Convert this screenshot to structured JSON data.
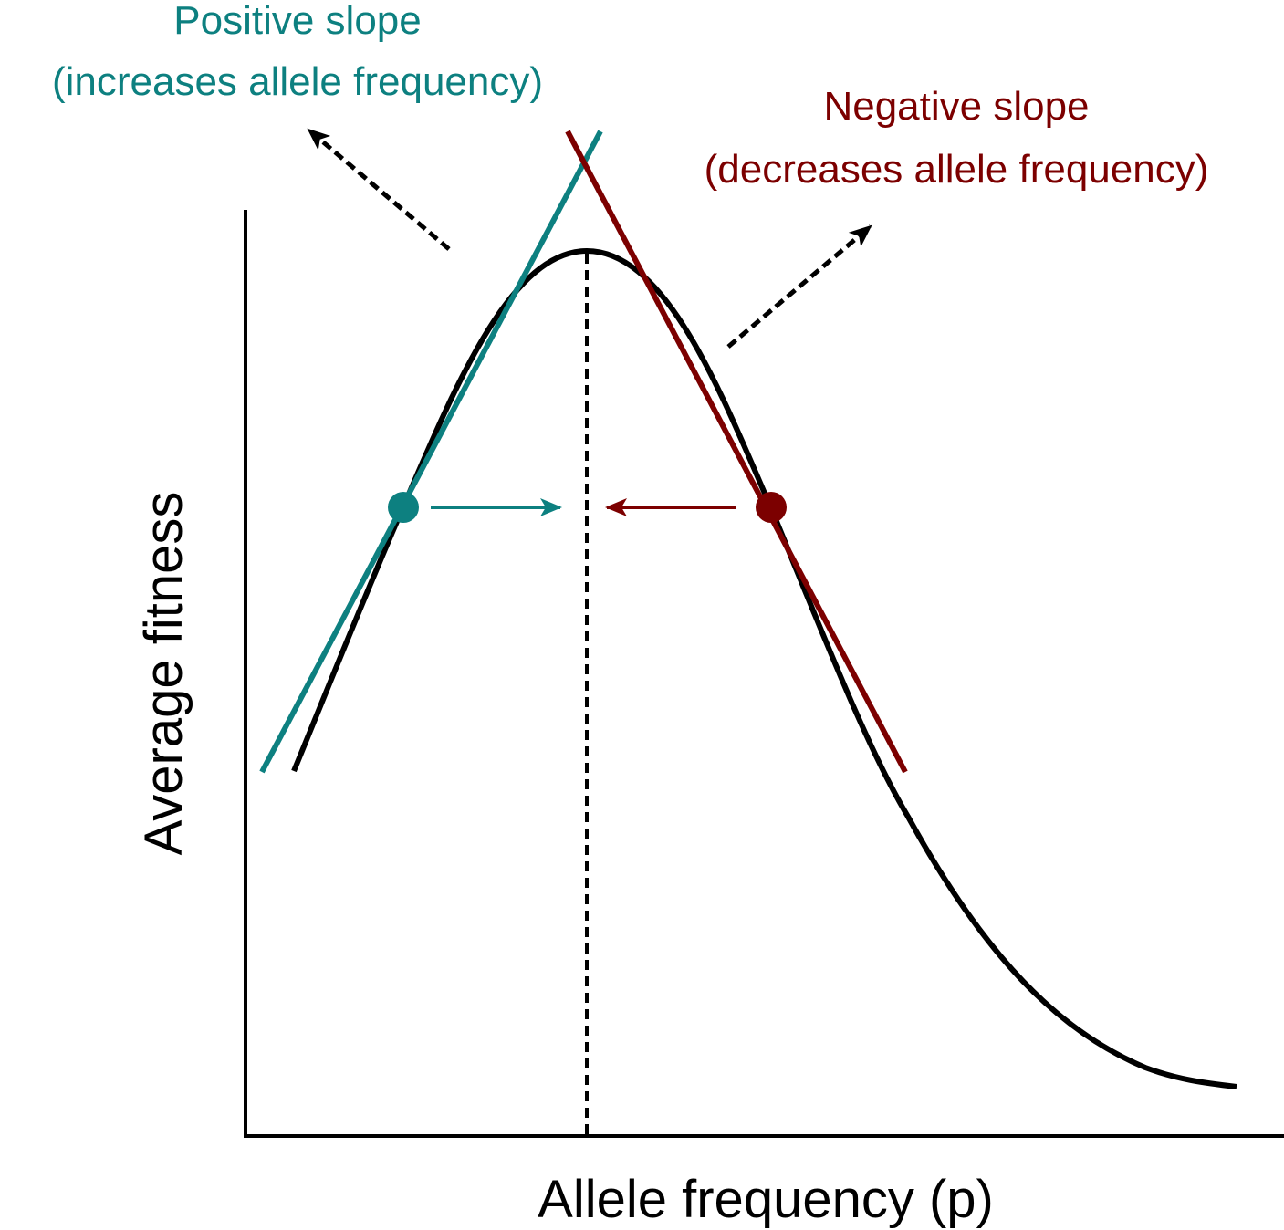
{
  "colors": {
    "positive": "#0d8080",
    "negative": "#7c0000",
    "curve": "#000000",
    "axis": "#000000",
    "background": "#ffffff"
  },
  "annotations": {
    "positive_title": "Positive slope",
    "positive_subtitle": "(increases allele frequency)",
    "negative_title": "Negative slope",
    "negative_subtitle": "(decreases allele frequency)"
  },
  "axes": {
    "x_label": "Allele frequency (p)",
    "y_label": "Average fitness"
  }
}
